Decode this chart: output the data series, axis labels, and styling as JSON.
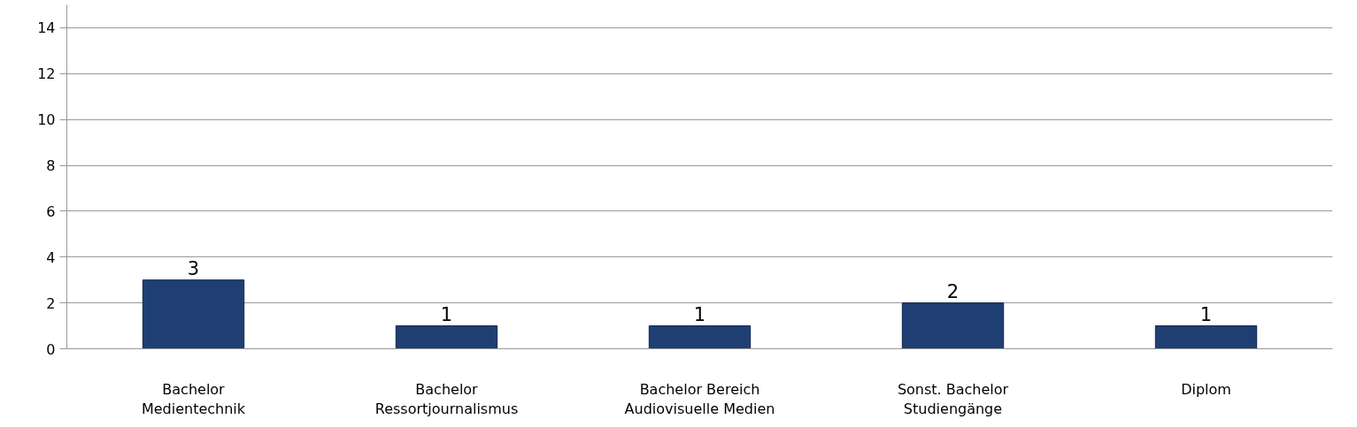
{
  "chart_data": {
    "type": "bar",
    "categories": [
      "Bachelor\nMedientechnik",
      "Bachelor\nRessortjournalismus",
      "Bachelor Bereich\nAudiovisuelle Medien",
      "Sonst. Bachelor\nStudiengänge",
      "Diplom"
    ],
    "values": [
      3,
      1,
      1,
      2,
      1
    ],
    "color": "#1f3f73",
    "ylim": [
      0,
      15
    ],
    "yticks": [
      0,
      2,
      4,
      6,
      8,
      10,
      12,
      14
    ],
    "grid": "y",
    "data_labels": true
  }
}
